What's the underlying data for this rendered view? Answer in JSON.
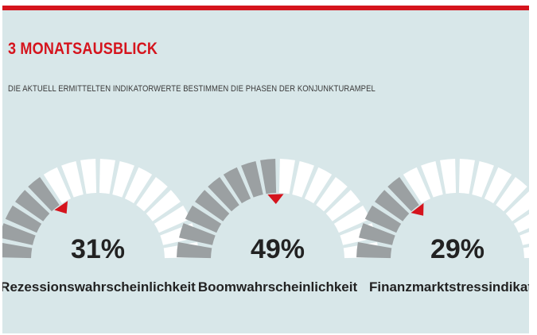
{
  "header": {
    "title": "3 MONATSAUSBLICK",
    "subtitle": "DIE AKTUELL ERMITTELTEN INDIKATORWERTE BESTIMMEN DIE PHASEN DER KONJUNKTURAMPEL"
  },
  "colors": {
    "brand_red": "#d5141d",
    "panel_background": "#d8e7e9",
    "segment_filled": "#9ba0a2",
    "segment_empty": "#ffffff",
    "text_dark": "#222222"
  },
  "chart_data": [
    {
      "type": "gauge",
      "label": "Rezessionswahrscheinlichkeit",
      "value": 31,
      "value_label": "31%",
      "min": 0,
      "max": 100
    },
    {
      "type": "gauge",
      "label": "Boomwahrscheinlichkeit",
      "value": 49,
      "value_label": "49%",
      "min": 0,
      "max": 100
    },
    {
      "type": "gauge",
      "label": "Finanzmarktstressindikator",
      "value": 29,
      "value_label": "29%",
      "min": 0,
      "max": 100
    }
  ]
}
